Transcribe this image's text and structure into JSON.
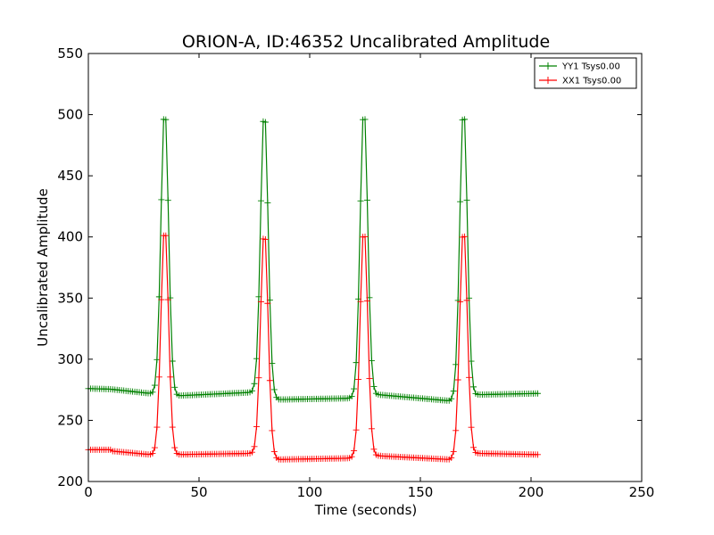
{
  "chart_data": {
    "type": "line",
    "title": "ORION-A, ID:46352 Uncalibrated Amplitude",
    "xlabel": "Time (seconds)",
    "ylabel": "Uncalibrated Amplitude",
    "xlim": [
      0,
      250
    ],
    "ylim": [
      200,
      550
    ],
    "xticks": [
      0,
      50,
      100,
      150,
      200,
      250
    ],
    "yticks": [
      200,
      250,
      300,
      350,
      400,
      450,
      500,
      550
    ],
    "grid": false,
    "legend_position": "top-right",
    "marker": "plus",
    "series": [
      {
        "name": "YY1 Tsys0.00",
        "color": "#008000",
        "segments": [
          {
            "x_start": 0,
            "x_end": 10,
            "level": 276,
            "level_end": 275.5
          },
          {
            "x_start": 10,
            "x_end": 28,
            "level": 275.5,
            "level_end": 272
          },
          {
            "x_start": 39,
            "x_end": 75,
            "level": 270,
            "level_end": 273
          },
          {
            "x_start": 86,
            "x_end": 117,
            "level": 267,
            "level_end": 268
          },
          {
            "x_start": 131,
            "x_end": 163,
            "level": 271,
            "level_end": 266
          },
          {
            "x_start": 176,
            "x_end": 203,
            "level": 271,
            "level_end": 272
          }
        ],
        "peaks": [
          {
            "x": 34.5,
            "y": 506
          },
          {
            "x": 79.5,
            "y": 504
          },
          {
            "x": 124.5,
            "y": 506
          },
          {
            "x": 169.5,
            "y": 506
          }
        ]
      },
      {
        "name": "XX1 Tsys0.00",
        "color": "#ff0000",
        "segments": [
          {
            "x_start": 0,
            "x_end": 10,
            "level": 226,
            "level_end": 226
          },
          {
            "x_start": 10,
            "x_end": 28,
            "level": 225,
            "level_end": 222
          },
          {
            "x_start": 39,
            "x_end": 75,
            "level": 222,
            "level_end": 223
          },
          {
            "x_start": 86,
            "x_end": 117,
            "level": 218,
            "level_end": 219
          },
          {
            "x_start": 131,
            "x_end": 163,
            "level": 221,
            "level_end": 218
          },
          {
            "x_start": 176,
            "x_end": 203,
            "level": 223,
            "level_end": 222
          }
        ],
        "peaks": [
          {
            "x": 34.5,
            "y": 409
          },
          {
            "x": 79.5,
            "y": 406
          },
          {
            "x": 124.5,
            "y": 408
          },
          {
            "x": 169.5,
            "y": 408
          }
        ]
      }
    ]
  }
}
